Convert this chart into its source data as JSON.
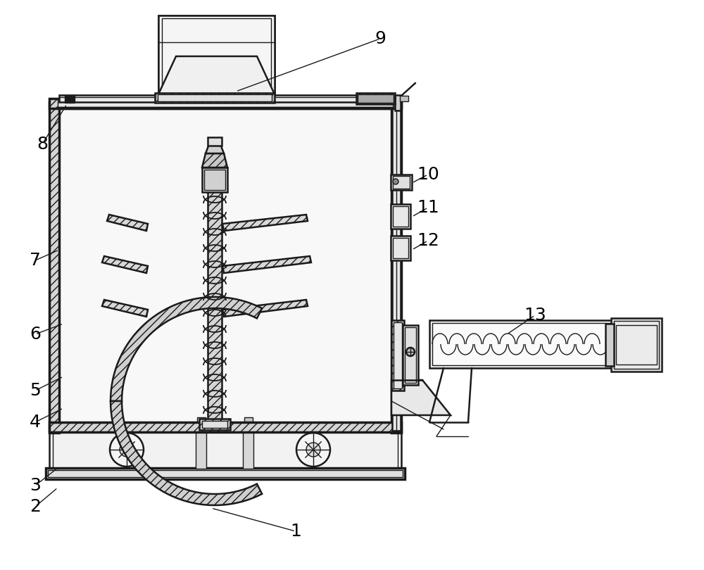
{
  "bg_color": "#ffffff",
  "line_color": "#1a1a1a",
  "label_color": "#000000",
  "label_fontsize": 18,
  "figsize": [
    10.0,
    8.1
  ],
  "dpi": 100
}
